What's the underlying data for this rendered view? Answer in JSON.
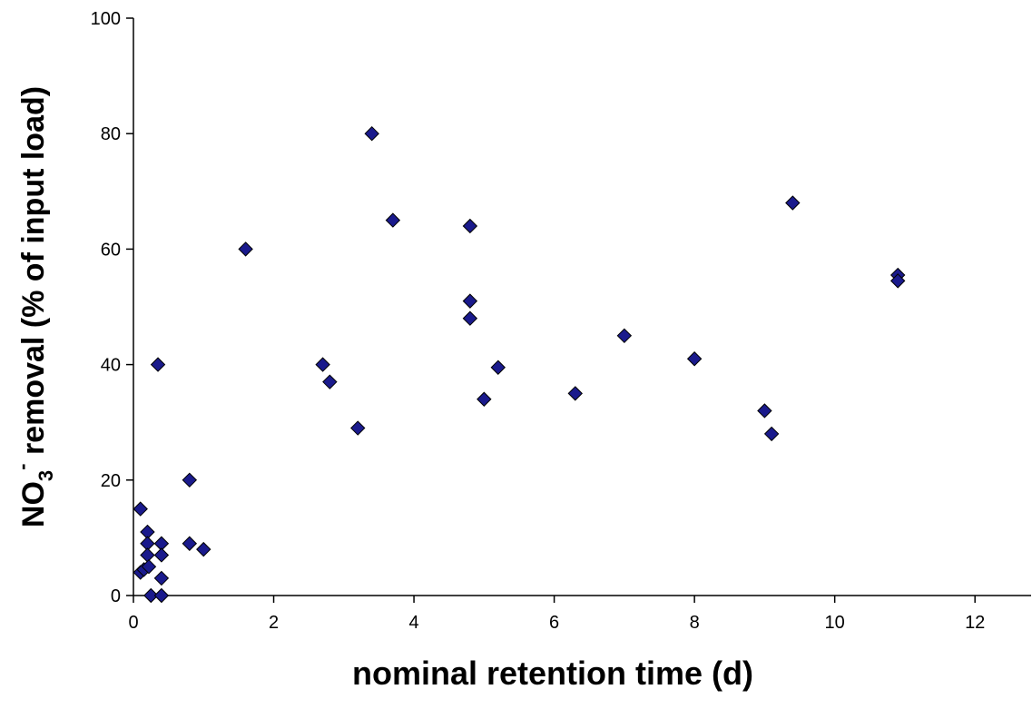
{
  "chart_data": {
    "type": "scatter",
    "title": "",
    "xlabel": "nominal retention time (d)",
    "ylabel": {
      "prefix": "NO",
      "subscript": "3",
      "superscript": "-",
      "suffix": " removal (% of input load)"
    },
    "xlim": [
      0,
      12.8
    ],
    "ylim": [
      0,
      100
    ],
    "x_ticks": [
      0,
      2,
      4,
      6,
      8,
      10,
      12
    ],
    "y_ticks": [
      0,
      20,
      40,
      60,
      80,
      100
    ],
    "grid": false,
    "legend": "none",
    "marker": {
      "shape": "diamond",
      "fill": "#1a1a8c",
      "stroke": "#000000"
    },
    "series": [
      {
        "points": [
          {
            "x": 0.1,
            "y": 15
          },
          {
            "x": 0.1,
            "y": 4
          },
          {
            "x": 0.15,
            "y": 4.5
          },
          {
            "x": 0.2,
            "y": 11
          },
          {
            "x": 0.2,
            "y": 9
          },
          {
            "x": 0.2,
            "y": 7
          },
          {
            "x": 0.22,
            "y": 5
          },
          {
            "x": 0.25,
            "y": 0
          },
          {
            "x": 0.35,
            "y": 40
          },
          {
            "x": 0.4,
            "y": 9
          },
          {
            "x": 0.4,
            "y": 7
          },
          {
            "x": 0.4,
            "y": 3
          },
          {
            "x": 0.4,
            "y": 0
          },
          {
            "x": 0.8,
            "y": 20
          },
          {
            "x": 0.8,
            "y": 9
          },
          {
            "x": 1.0,
            "y": 8
          },
          {
            "x": 1.6,
            "y": 60
          },
          {
            "x": 2.7,
            "y": 40
          },
          {
            "x": 2.8,
            "y": 37
          },
          {
            "x": 3.2,
            "y": 29
          },
          {
            "x": 3.4,
            "y": 80
          },
          {
            "x": 3.7,
            "y": 65
          },
          {
            "x": 4.8,
            "y": 64
          },
          {
            "x": 4.8,
            "y": 51
          },
          {
            "x": 4.8,
            "y": 48
          },
          {
            "x": 5.0,
            "y": 34
          },
          {
            "x": 5.2,
            "y": 39.5
          },
          {
            "x": 6.3,
            "y": 35
          },
          {
            "x": 7.0,
            "y": 45
          },
          {
            "x": 8.0,
            "y": 41
          },
          {
            "x": 9.0,
            "y": 32
          },
          {
            "x": 9.1,
            "y": 28
          },
          {
            "x": 9.4,
            "y": 68
          },
          {
            "x": 10.9,
            "y": 55.5
          },
          {
            "x": 10.9,
            "y": 54.5
          }
        ]
      }
    ]
  }
}
